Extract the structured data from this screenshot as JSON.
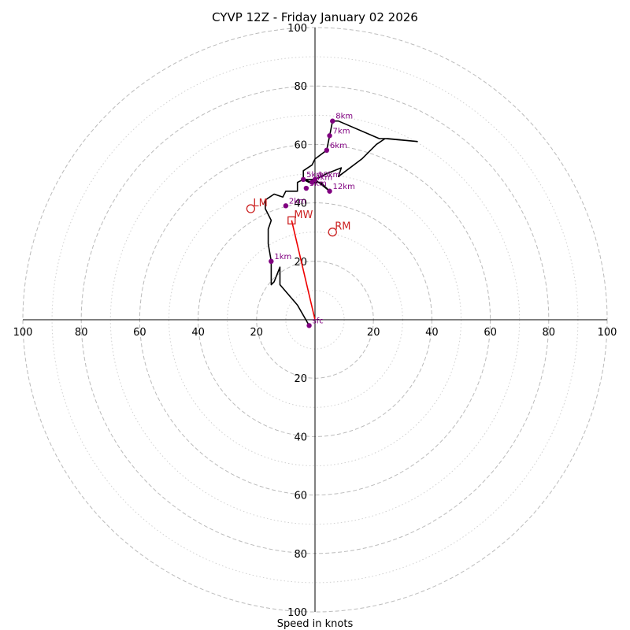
{
  "chart_data": {
    "type": "line",
    "title": "CYVP 12Z - Friday January 02 2026",
    "xlabel": "Speed in knots",
    "ylabel": "",
    "xlim": [
      -100,
      100
    ],
    "ylim": [
      -100,
      100
    ],
    "dashed_rings": [
      20,
      40,
      60,
      80,
      100
    ],
    "dotted_rings": [
      10,
      30,
      50,
      70,
      90
    ],
    "x_ticks": [
      -100,
      -80,
      -60,
      -40,
      -20,
      20,
      40,
      60,
      80,
      100
    ],
    "x_tick_labels": [
      "100",
      "80",
      "60",
      "40",
      "20",
      "20",
      "40",
      "60",
      "80",
      "100"
    ],
    "y_ticks": [
      100,
      80,
      60,
      40,
      20,
      -20,
      -40,
      -60,
      -80,
      -100
    ],
    "y_tick_labels": [
      "100",
      "80",
      "60",
      "40",
      "20",
      "20",
      "40",
      "60",
      "80",
      "100"
    ],
    "colors": {
      "hodograph": "#000000",
      "height_marker": "#800080",
      "motion": "#cc2222",
      "grid": "#bbbbbb",
      "axis": "#000000"
    },
    "hodograph_trace": [
      [
        -2,
        -2
      ],
      [
        -6,
        5
      ],
      [
        -12,
        12
      ],
      [
        -12,
        18
      ],
      [
        -14,
        13
      ],
      [
        -15,
        12
      ],
      [
        -15,
        20
      ],
      [
        -16,
        26
      ],
      [
        -16,
        31
      ],
      [
        -15,
        34
      ],
      [
        -17,
        38
      ],
      [
        -17,
        41
      ],
      [
        -14,
        43
      ],
      [
        -11,
        42
      ],
      [
        -10,
        44
      ],
      [
        -6,
        44
      ],
      [
        -6,
        47
      ],
      [
        -4,
        48
      ],
      [
        -2,
        47
      ],
      [
        0,
        48
      ],
      [
        5,
        44
      ],
      [
        2,
        47
      ],
      [
        -1,
        47
      ],
      [
        -4,
        48
      ],
      [
        0,
        48
      ],
      [
        4,
        50
      ],
      [
        9,
        52
      ],
      [
        8,
        49
      ],
      [
        16,
        55
      ],
      [
        21,
        60
      ],
      [
        24,
        62
      ],
      [
        35,
        61
      ],
      [
        25,
        62
      ],
      [
        22,
        62
      ],
      [
        8,
        68
      ],
      [
        6,
        68
      ],
      [
        5,
        63
      ],
      [
        4,
        58
      ],
      [
        0,
        55
      ],
      [
        -1,
        53
      ],
      [
        -4,
        51
      ],
      [
        -4,
        48
      ]
    ],
    "height_markers": [
      {
        "label": "sfc",
        "x": -2,
        "y": -2
      },
      {
        "label": "1km",
        "x": -15,
        "y": 20
      },
      {
        "label": "2km",
        "x": -10,
        "y": 39
      },
      {
        "label": "3km",
        "x": -3,
        "y": 45
      },
      {
        "label": "4km",
        "x": -1,
        "y": 47
      },
      {
        "label": "5km",
        "x": -4,
        "y": 48
      },
      {
        "label": "6km",
        "x": 4,
        "y": 58
      },
      {
        "label": "7km",
        "x": 5,
        "y": 63
      },
      {
        "label": "8km",
        "x": 6,
        "y": 68
      },
      {
        "label": "10km",
        "x": 0,
        "y": 48
      },
      {
        "label": "12km",
        "x": 5,
        "y": 44
      }
    ],
    "storm_motion": [
      {
        "label": "LM",
        "x": -22,
        "y": 38,
        "marker": "circle"
      },
      {
        "label": "RM",
        "x": 6,
        "y": 30,
        "marker": "circle"
      },
      {
        "label": "MW",
        "x": -8,
        "y": 34,
        "marker": "square"
      }
    ],
    "mean_wind_vector": {
      "from": [
        0,
        0
      ],
      "to": [
        -8,
        34
      ]
    }
  }
}
